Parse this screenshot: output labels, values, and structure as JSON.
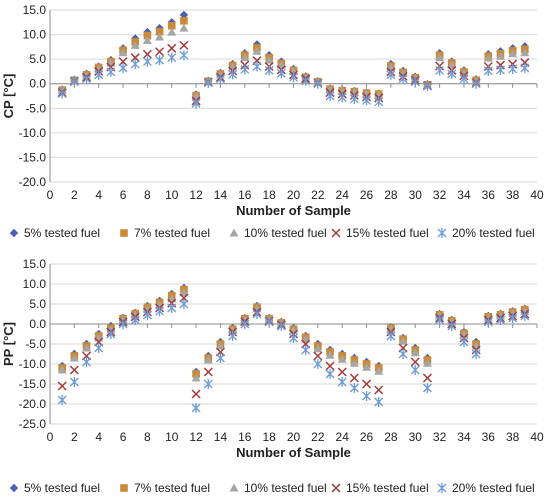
{
  "chart_data": [
    {
      "type": "scatter",
      "title": "",
      "xlabel": "Number of Sample",
      "ylabel": "CP [°C]",
      "xlim": [
        0,
        40
      ],
      "ylim": [
        -20,
        15
      ],
      "xticks": [
        0,
        2,
        4,
        6,
        8,
        10,
        12,
        14,
        16,
        18,
        20,
        22,
        24,
        26,
        28,
        30,
        32,
        34,
        36,
        38,
        40
      ],
      "yticks": [
        -20,
        -15,
        -10,
        -5,
        0,
        5,
        10,
        15
      ],
      "ytick_labels": [
        "-20.0",
        "-15.0",
        "-10.0",
        "-5.0",
        "0.0",
        "5.0",
        "10.0",
        "15.0"
      ],
      "grid": "horizontal",
      "legend_position": "bottom",
      "x": [
        1,
        2,
        3,
        4,
        5,
        6,
        7,
        8,
        9,
        10,
        11,
        12,
        13,
        14,
        15,
        16,
        17,
        18,
        19,
        20,
        21,
        22,
        23,
        24,
        25,
        26,
        27,
        28,
        29,
        30,
        31,
        32,
        33,
        34,
        35,
        36,
        37,
        38,
        39
      ],
      "series": [
        {
          "name": "5% tested fuel",
          "marker": "diamond",
          "color": "#4a5fb5",
          "values": [
            -1.2,
            0.8,
            2.0,
            3.5,
            4.8,
            7.2,
            9.2,
            10.5,
            11.3,
            12.5,
            14.0,
            -2.2,
            0.6,
            2.2,
            4.0,
            6.2,
            8.0,
            5.8,
            4.5,
            3.0,
            1.5,
            0.5,
            -1.0,
            -1.3,
            -1.5,
            -1.8,
            -2.0,
            4.0,
            2.6,
            1.4,
            -0.1,
            6.2,
            4.5,
            2.7,
            0.9,
            6.0,
            6.6,
            7.2,
            7.6
          ]
        },
        {
          "name": "7% tested fuel",
          "marker": "square",
          "color": "#c98a3a",
          "values": [
            -1.3,
            0.7,
            1.8,
            3.3,
            4.5,
            6.8,
            8.5,
            9.8,
            10.6,
            11.8,
            12.8,
            -2.4,
            0.5,
            2.0,
            3.7,
            5.8,
            7.3,
            5.3,
            4.1,
            2.7,
            1.3,
            0.4,
            -1.1,
            -1.4,
            -1.6,
            -1.9,
            -2.1,
            3.6,
            2.3,
            1.2,
            -0.2,
            5.8,
            4.2,
            2.4,
            0.7,
            5.6,
            6.1,
            6.7,
            7.0
          ]
        },
        {
          "name": "10% tested fuel",
          "marker": "triangle",
          "color": "#a6a6a6",
          "values": [
            -1.4,
            0.6,
            1.6,
            3.0,
            4.2,
            6.3,
            7.8,
            8.8,
            9.5,
            10.5,
            11.3,
            -2.6,
            0.4,
            1.8,
            3.4,
            5.3,
            6.6,
            4.8,
            3.8,
            2.5,
            1.2,
            0.3,
            -1.2,
            -1.5,
            -1.8,
            -2.1,
            -2.4,
            3.3,
            2.1,
            1.0,
            -0.3,
            5.3,
            3.8,
            2.1,
            0.5,
            5.2,
            5.6,
            6.1,
            6.3
          ]
        },
        {
          "name": "15% tested fuel",
          "marker": "x",
          "color": "#a33a3a",
          "values": [
            -1.8,
            0.5,
            1.3,
            2.5,
            3.4,
            4.5,
            5.3,
            6.0,
            6.5,
            7.2,
            7.8,
            -3.5,
            0.3,
            1.3,
            2.6,
            3.8,
            4.7,
            3.5,
            2.8,
            1.8,
            1.0,
            0.1,
            -1.8,
            -2.1,
            -2.4,
            -2.7,
            -2.9,
            2.4,
            1.5,
            0.7,
            -0.4,
            3.6,
            2.7,
            1.6,
            0.2,
            3.5,
            3.8,
            4.0,
            4.3
          ]
        },
        {
          "name": "20% tested fuel",
          "marker": "asterisk",
          "color": "#6b9bd6",
          "values": [
            -2.0,
            0.4,
            1.0,
            1.8,
            2.4,
            3.2,
            4.0,
            4.5,
            4.8,
            5.3,
            5.8,
            -4.0,
            0.2,
            1.0,
            1.9,
            2.9,
            3.5,
            2.7,
            2.1,
            1.3,
            0.6,
            0.0,
            -2.5,
            -2.8,
            -3.1,
            -3.4,
            -3.7,
            1.8,
            1.0,
            0.4,
            -0.5,
            2.7,
            2.0,
            1.0,
            0.0,
            2.6,
            2.8,
            3.0,
            3.2
          ]
        }
      ]
    },
    {
      "type": "scatter",
      "title": "",
      "xlabel": "Number of Sample",
      "ylabel": "PP [°C]",
      "xlim": [
        0,
        40
      ],
      "ylim": [
        -25,
        15
      ],
      "xticks": [
        0,
        2,
        4,
        6,
        8,
        10,
        12,
        14,
        16,
        18,
        20,
        22,
        24,
        26,
        28,
        30,
        32,
        34,
        36,
        38,
        40
      ],
      "yticks": [
        -25,
        -20,
        -15,
        -10,
        -5,
        0,
        5,
        10,
        15
      ],
      "ytick_labels": [
        "-25.0",
        "-20.0",
        "-15.0",
        "-10.0",
        "-5.0",
        "0.0",
        "5.0",
        "10.0",
        "15.0"
      ],
      "grid": "horizontal",
      "legend_position": "bottom",
      "x": [
        1,
        2,
        3,
        4,
        5,
        6,
        7,
        8,
        9,
        10,
        11,
        12,
        13,
        14,
        15,
        16,
        17,
        18,
        19,
        20,
        21,
        22,
        23,
        24,
        25,
        26,
        27,
        28,
        29,
        30,
        31,
        32,
        33,
        34,
        35,
        36,
        37,
        38,
        39
      ],
      "series": [
        {
          "name": "5% tested fuel",
          "marker": "diamond",
          "color": "#4a5fb5",
          "values": [
            -10.5,
            -7.5,
            -5.0,
            -2.5,
            -0.5,
            1.5,
            2.8,
            4.5,
            5.8,
            7.5,
            9.0,
            -12.0,
            -8.0,
            -4.5,
            -1.0,
            1.5,
            4.5,
            1.5,
            0.5,
            -1.0,
            -3.0,
            -5.0,
            -6.5,
            -7.5,
            -8.5,
            -9.5,
            -10.5,
            -0.8,
            -3.5,
            -6.0,
            -8.5,
            2.5,
            1.0,
            -2.0,
            -4.5,
            2.0,
            2.5,
            3.2,
            3.8
          ]
        },
        {
          "name": "7% tested fuel",
          "marker": "square",
          "color": "#c98a3a",
          "values": [
            -11.0,
            -8.0,
            -5.5,
            -3.0,
            -1.0,
            1.3,
            2.6,
            4.2,
            5.4,
            7.1,
            8.6,
            -12.5,
            -8.5,
            -5.0,
            -1.3,
            1.3,
            4.2,
            1.3,
            0.3,
            -1.3,
            -3.3,
            -5.5,
            -7.0,
            -8.0,
            -9.0,
            -10.0,
            -11.0,
            -1.0,
            -3.8,
            -6.5,
            -9.0,
            2.3,
            0.8,
            -2.3,
            -5.0,
            1.8,
            2.3,
            3.0,
            3.6
          ]
        },
        {
          "name": "10% tested fuel",
          "marker": "triangle",
          "color": "#a6a6a6",
          "values": [
            -11.5,
            -8.5,
            -6.0,
            -3.5,
            -1.5,
            1.0,
            2.2,
            3.7,
            4.8,
            6.3,
            7.8,
            -13.5,
            -9.0,
            -5.5,
            -1.6,
            1.0,
            3.8,
            1.0,
            0.1,
            -1.6,
            -3.8,
            -6.2,
            -7.8,
            -8.8,
            -9.8,
            -10.8,
            -11.8,
            -1.3,
            -4.3,
            -7.2,
            -9.8,
            2.0,
            0.5,
            -2.6,
            -5.5,
            1.5,
            2.0,
            2.6,
            3.1
          ]
        },
        {
          "name": "15% tested fuel",
          "marker": "x",
          "color": "#a33a3a",
          "values": [
            -15.5,
            -11.5,
            -8.0,
            -4.5,
            -2.0,
            0.5,
            1.8,
            3.0,
            4.0,
            5.2,
            6.5,
            -17.5,
            -12.0,
            -7.0,
            -2.0,
            0.6,
            3.0,
            0.7,
            -0.2,
            -2.5,
            -5.0,
            -8.0,
            -10.5,
            -12.0,
            -13.5,
            -15.0,
            -16.5,
            -2.0,
            -6.0,
            -9.5,
            -13.5,
            1.5,
            0.0,
            -3.5,
            -6.5,
            1.0,
            1.5,
            2.0,
            2.5
          ]
        },
        {
          "name": "20% tested fuel",
          "marker": "asterisk",
          "color": "#6b9bd6",
          "values": [
            -19.0,
            -14.5,
            -9.5,
            -6.0,
            -2.5,
            0.0,
            1.0,
            2.2,
            3.2,
            4.0,
            5.0,
            -21.0,
            -15.0,
            -8.5,
            -3.0,
            0.0,
            2.5,
            0.5,
            -0.5,
            -3.5,
            -6.5,
            -10.0,
            -12.5,
            -14.5,
            -16.0,
            -18.0,
            -19.5,
            -3.0,
            -7.5,
            -11.5,
            -16.0,
            1.0,
            -0.5,
            -4.5,
            -7.5,
            0.5,
            1.0,
            1.5,
            2.0
          ]
        }
      ]
    }
  ]
}
